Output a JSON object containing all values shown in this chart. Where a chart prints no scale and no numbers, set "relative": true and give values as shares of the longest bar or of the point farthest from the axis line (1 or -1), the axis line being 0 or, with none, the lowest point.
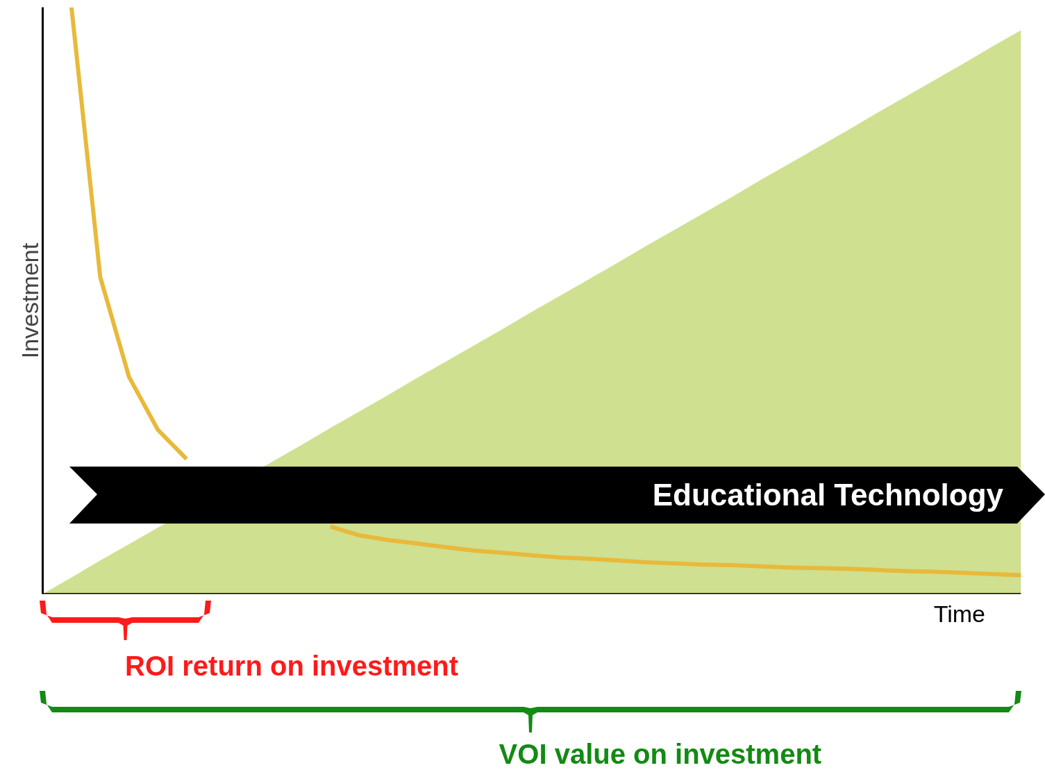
{
  "chart_data": {
    "type": "line",
    "relative": true,
    "xlabel": "Time",
    "ylabel": "Investment",
    "categories": [
      null,
      null,
      null,
      null,
      null,
      null,
      null,
      null,
      null,
      null,
      null,
      null,
      null,
      null,
      null,
      null,
      null,
      null,
      null,
      null,
      null,
      null,
      null,
      null,
      null,
      null,
      null,
      null,
      null,
      null,
      null,
      null,
      null,
      null,
      null
    ],
    "series": [
      {
        "type": "area",
        "color": "#cfe090",
        "values": [
          0,
          0.028,
          0.057,
          0.085,
          0.113,
          null,
          null,
          null,
          0.226,
          0.254,
          0.283,
          0.311,
          0.339,
          0.368,
          0.396,
          0.424,
          0.452,
          0.481,
          0.509,
          0.537,
          0.565,
          0.594,
          0.622,
          0.65,
          0.678,
          0.707,
          0.735,
          0.763,
          0.791,
          0.82,
          0.848,
          0.876,
          0.904,
          0.933,
          0.961
        ]
      },
      {
        "color": "#e8b93a",
        "values": [
          null,
          1.0,
          0.54,
          0.37,
          0.28,
          0.23,
          null,
          null,
          null,
          null,
          0.115,
          0.1,
          0.092,
          0.086,
          0.08,
          0.074,
          0.07,
          0.066,
          0.062,
          0.06,
          0.057,
          0.054,
          0.052,
          0.05,
          0.049,
          0.047,
          0.045,
          0.044,
          0.043,
          0.041,
          0.039,
          0.038,
          0.036,
          0.034,
          0.032
        ]
      }
    ],
    "annotations": [
      "Educational Technology",
      "ROI return on investment",
      "VOI value on investment"
    ]
  }
}
